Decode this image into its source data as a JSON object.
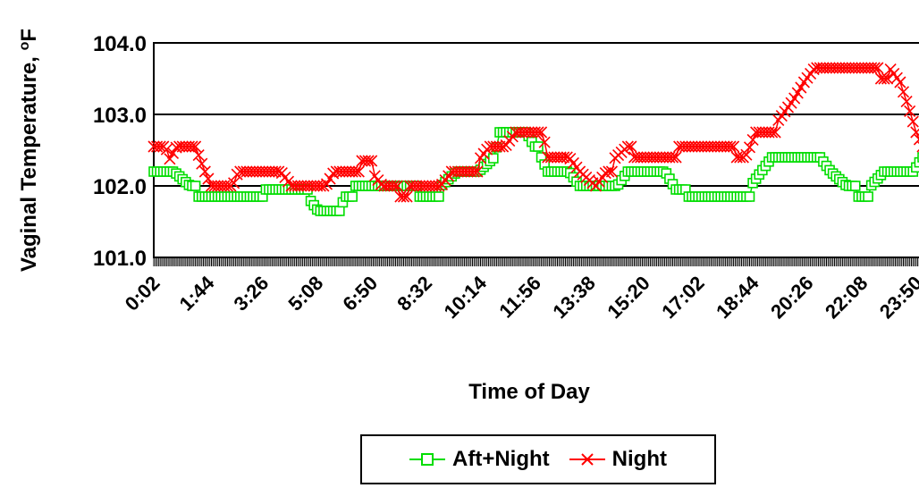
{
  "chart_data": {
    "type": "line",
    "title": "",
    "xlabel": "Time of Day",
    "ylabel": "Vaginal Temperature, °F",
    "ylabel_main": "Vaginal Temperature, ",
    "ylabel_unit": "F",
    "ylabel_degree": "o",
    "ylim": [
      101.0,
      104.0
    ],
    "y_ticks": [
      "101.0",
      "102.0",
      "103.0",
      "104.0"
    ],
    "x_ticks": [
      "0:02",
      "1:44",
      "3:26",
      "5:08",
      "6:50",
      "8:32",
      "10:14",
      "11:56",
      "13:38",
      "15:20",
      "17:02",
      "18:44",
      "20:26",
      "22:08",
      "23:50"
    ],
    "grid": "horizontal",
    "legend_position": "bottom",
    "x_range_minutes": [
      2,
      1442
    ],
    "series": [
      {
        "name": "Aft+Night",
        "color": "#00dd00",
        "marker": "square",
        "breakpoints": [
          [
            2,
            102.2
          ],
          [
            40,
            102.2
          ],
          [
            70,
            102.0
          ],
          [
            85,
            101.85
          ],
          [
            200,
            101.85
          ],
          [
            210,
            101.95
          ],
          [
            270,
            101.95
          ],
          [
            290,
            101.85
          ],
          [
            310,
            101.65
          ],
          [
            350,
            101.65
          ],
          [
            360,
            101.85
          ],
          [
            375,
            102.0
          ],
          [
            440,
            102.0
          ],
          [
            495,
            101.85
          ],
          [
            520,
            101.85
          ],
          [
            540,
            102.0
          ],
          [
            570,
            102.2
          ],
          [
            610,
            102.2
          ],
          [
            640,
            102.4
          ],
          [
            650,
            102.75
          ],
          [
            700,
            102.75
          ],
          [
            715,
            102.55
          ],
          [
            725,
            102.45
          ],
          [
            740,
            102.2
          ],
          [
            780,
            102.2
          ],
          [
            800,
            102.0
          ],
          [
            870,
            102.0
          ],
          [
            890,
            102.2
          ],
          [
            960,
            102.2
          ],
          [
            980,
            101.95
          ],
          [
            1000,
            101.85
          ],
          [
            1100,
            101.85
          ],
          [
            1120,
            102.0
          ],
          [
            1140,
            102.2
          ],
          [
            1160,
            102.4
          ],
          [
            1250,
            102.4
          ],
          [
            1270,
            102.2
          ],
          [
            1300,
            102.0
          ],
          [
            1320,
            101.85
          ],
          [
            1345,
            102.0
          ],
          [
            1370,
            102.2
          ],
          [
            1425,
            102.2
          ],
          [
            1442,
            102.4
          ]
        ]
      },
      {
        "name": "Night",
        "color": "#ff0000",
        "marker": "x",
        "breakpoints": [
          [
            2,
            102.55
          ],
          [
            25,
            102.55
          ],
          [
            30,
            102.35
          ],
          [
            45,
            102.55
          ],
          [
            80,
            102.55
          ],
          [
            95,
            102.25
          ],
          [
            110,
            102.0
          ],
          [
            150,
            102.0
          ],
          [
            160,
            102.2
          ],
          [
            240,
            102.2
          ],
          [
            260,
            102.0
          ],
          [
            310,
            102.0
          ],
          [
            320,
            101.95
          ],
          [
            340,
            102.2
          ],
          [
            380,
            102.2
          ],
          [
            390,
            102.35
          ],
          [
            410,
            102.2
          ],
          [
            430,
            102.0
          ],
          [
            460,
            101.85
          ],
          [
            480,
            102.0
          ],
          [
            540,
            102.0
          ],
          [
            560,
            102.2
          ],
          [
            590,
            102.2
          ],
          [
            610,
            102.35
          ],
          [
            630,
            102.55
          ],
          [
            660,
            102.55
          ],
          [
            680,
            102.75
          ],
          [
            730,
            102.75
          ],
          [
            740,
            102.4
          ],
          [
            780,
            102.4
          ],
          [
            800,
            102.2
          ],
          [
            830,
            102.0
          ],
          [
            850,
            102.2
          ],
          [
            860,
            102.35
          ],
          [
            890,
            102.55
          ],
          [
            900,
            102.4
          ],
          [
            950,
            102.4
          ],
          [
            980,
            102.55
          ],
          [
            1070,
            102.55
          ],
          [
            1090,
            102.4
          ],
          [
            1110,
            102.4
          ],
          [
            1130,
            102.75
          ],
          [
            1170,
            102.9
          ],
          [
            1200,
            103.2
          ],
          [
            1220,
            103.45
          ],
          [
            1240,
            103.65
          ],
          [
            1350,
            103.65
          ],
          [
            1360,
            103.5
          ],
          [
            1380,
            103.65
          ],
          [
            1400,
            103.45
          ],
          [
            1420,
            103.0
          ],
          [
            1430,
            102.75
          ],
          [
            1442,
            102.55
          ]
        ]
      }
    ]
  }
}
